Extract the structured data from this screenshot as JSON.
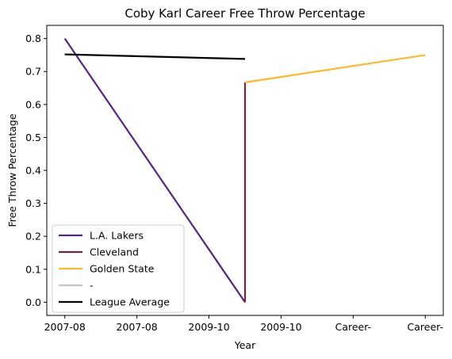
{
  "chart_data": {
    "type": "line",
    "title": "Coby Karl Career Free Throw Percentage",
    "xlabel": "Year",
    "ylabel": "Free Throw Percentage",
    "categories": [
      "2007-08",
      "2007-08",
      "2009-10",
      "2009-10",
      "Career-",
      "Career-"
    ],
    "ylim": [
      -0.04,
      0.84
    ],
    "yticks": [
      0.0,
      0.1,
      0.2,
      0.3,
      0.4,
      0.5,
      0.6,
      0.7,
      0.8
    ],
    "ytick_labels": [
      "0.0",
      "0.1",
      "0.2",
      "0.3",
      "0.4",
      "0.5",
      "0.6",
      "0.7",
      "0.8"
    ],
    "grid": false,
    "legend_position": "lower-left",
    "series": [
      {
        "name": "L.A. Lakers",
        "color": "#552583",
        "points": [
          [
            0,
            0.8
          ],
          [
            2.5,
            0.0
          ]
        ]
      },
      {
        "name": "Cleveland",
        "color": "#6F263D",
        "points": [
          [
            2.5,
            0.0
          ],
          [
            2.5,
            0.667
          ]
        ]
      },
      {
        "name": "Golden State",
        "color": "#FDB927",
        "points": [
          [
            2.5,
            0.667
          ],
          [
            5,
            0.75
          ]
        ]
      },
      {
        "name": "-",
        "color": "#C4C4C4",
        "points": []
      },
      {
        "name": "League Average",
        "color": "#000000",
        "points": [
          [
            0,
            0.752
          ],
          [
            2.5,
            0.738
          ]
        ]
      }
    ]
  }
}
